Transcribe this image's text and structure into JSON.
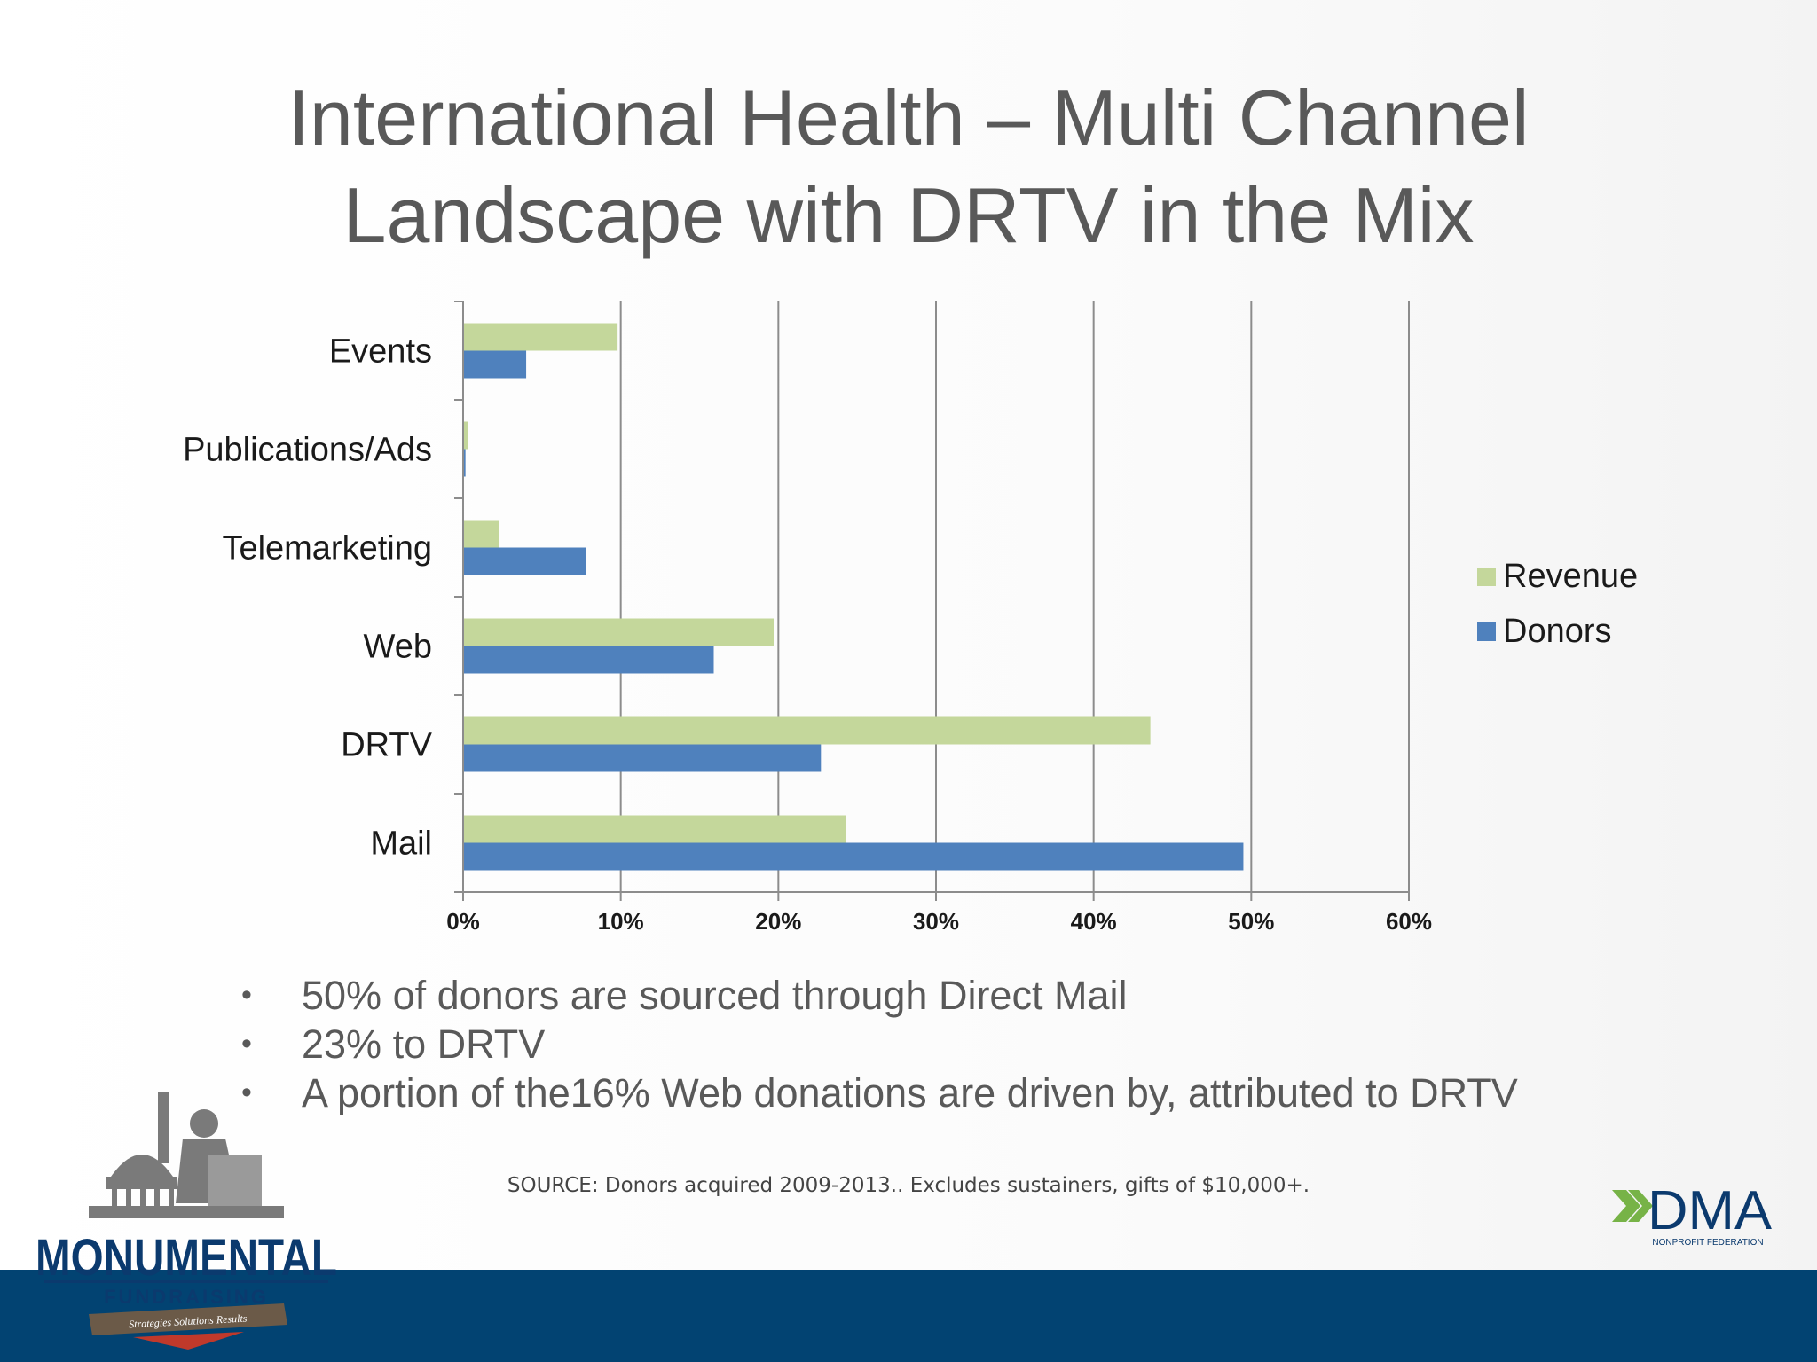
{
  "slide": {
    "title_line1": "International Health – Multi Channel",
    "title_line2": "Landscape with DRTV in the Mix",
    "bullets": [
      "50% of donors are sourced through Direct Mail",
      "23% to DRTV",
      "A portion of the16% Web donations are driven by, attributed to DRTV"
    ],
    "bullet_glyph": "•",
    "source": "SOURCE: Donors acquired 2009-2013.. Excludes sustainers, gifts of $10,000+.",
    "logo_left": {
      "word1": "MONUMENTAL",
      "word2": "FUNDRAISING",
      "ribbon": "Strategies  Solutions  Results"
    },
    "logo_right": {
      "word": "DMA",
      "sub": "NONPROFIT FEDERATION"
    },
    "colors": {
      "title": "#595959",
      "footer": "#024372",
      "revenue": "#c4d79b",
      "donors": "#4f81bd",
      "logo_navy": "#0b3a6e",
      "logo_green": "#77b347"
    }
  },
  "chart_data": {
    "type": "bar",
    "orientation": "horizontal",
    "categories": [
      "Events",
      "Publications/Ads",
      "Telemarketing",
      "Web",
      "DRTV",
      "Mail"
    ],
    "series": [
      {
        "name": "Revenue",
        "color": "#c4d79b",
        "values": [
          9.8,
          0.3,
          2.3,
          19.7,
          43.6,
          24.3
        ]
      },
      {
        "name": "Donors",
        "color": "#4f81bd",
        "values": [
          4.0,
          0.15,
          7.8,
          15.9,
          22.7,
          49.5
        ]
      }
    ],
    "xlim": [
      0,
      60
    ],
    "xticks": [
      "0%",
      "10%",
      "20%",
      "30%",
      "40%",
      "50%",
      "60%"
    ],
    "grid": true,
    "legend": "right"
  }
}
